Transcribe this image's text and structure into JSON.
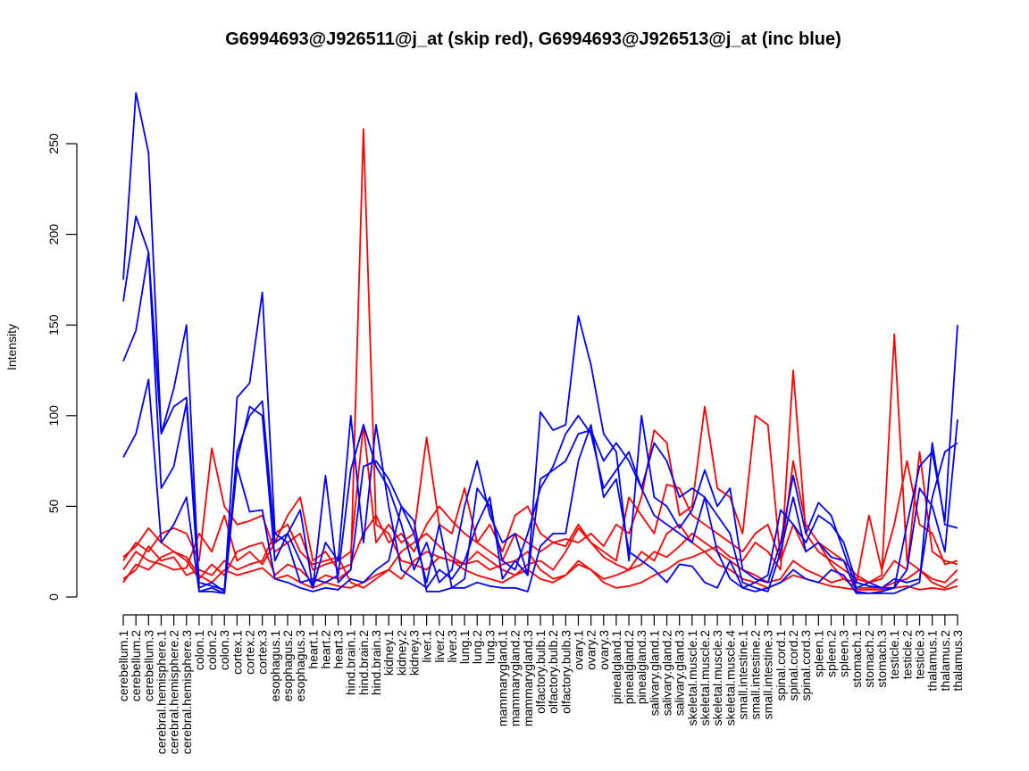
{
  "chart_data": {
    "type": "line",
    "title": "G6994693@J926511@j_at (skip red), G6994693@J926513@j_at (inc blue)",
    "xlabel": "",
    "ylabel": "Intensity",
    "ylim": [
      0,
      280
    ],
    "yticks": [
      0,
      50,
      100,
      150,
      200,
      250
    ],
    "grid": false,
    "categories": [
      "cerebellum.1",
      "cerebellum.2",
      "cerebellum.3",
      "cerebral.hemisphere.1",
      "cerebral.hemisphere.2",
      "cerebral.hemisphere.3",
      "colon.1",
      "colon.2",
      "colon.3",
      "cortex.1",
      "cortex.2",
      "cortex.3",
      "esophagus.1",
      "esophagus.2",
      "esophagus.3",
      "heart.1",
      "heart.2",
      "heart.3",
      "hind.brain.1",
      "hind.brain.2",
      "hind.brain.3",
      "kidney.1",
      "kidney.2",
      "kidney.3",
      "liver.1",
      "liver.2",
      "liver.3",
      "lung.1",
      "lung.2",
      "lung.3",
      "mammarygland.1",
      "mammarygland.2",
      "mammarygland.3",
      "olfactory.bulb.1",
      "olfactory.bulb.2",
      "olfactory.bulb.3",
      "ovary.1",
      "ovary.2",
      "ovary.3",
      "pinealgland.1",
      "pinealgland.2",
      "pinealgland.3",
      "salivary.gland.1",
      "salivary.gland.2",
      "salivary.gland.3",
      "skeletal.muscle.1",
      "skeletal.muscle.2",
      "skeletal.muscle.3",
      "skeletal.muscle.4",
      "small.intestine.1",
      "small.intestine.2",
      "small.intestine.3",
      "spinal.cord.1",
      "spinal.cord.2",
      "spinal.cord.3",
      "spleen.1",
      "spleen.2",
      "spleen.3",
      "stomach.1",
      "stomach.2",
      "stomach.3",
      "testicle.1",
      "testicle.2",
      "testicle.3",
      "thalamus.1",
      "thalamus.2",
      "thalamus.3"
    ],
    "series": [
      {
        "group": "skip",
        "color": "#ff0000",
        "values": [
          8,
          18,
          15,
          22,
          25,
          20,
          10,
          18,
          12,
          25,
          28,
          30,
          12,
          18,
          15,
          8,
          12,
          10,
          15,
          258,
          40,
          35,
          20,
          18,
          15,
          22,
          20,
          18,
          25,
          20,
          15,
          12,
          18,
          20,
          15,
          25,
          38,
          30,
          22,
          18,
          15,
          25,
          20,
          35,
          40,
          30,
          25,
          28,
          22,
          20,
          30,
          25,
          15,
          125,
          35,
          25,
          20,
          15,
          10,
          8,
          12,
          145,
          20,
          15,
          10,
          8,
          15
        ]
      },
      {
        "group": "skip",
        "color": "#ff0000",
        "values": [
          20,
          30,
          25,
          35,
          38,
          35,
          20,
          82,
          50,
          40,
          42,
          45,
          25,
          30,
          35,
          15,
          18,
          20,
          25,
          95,
          30,
          40,
          30,
          35,
          88,
          40,
          35,
          60,
          30,
          40,
          25,
          45,
          50,
          35,
          30,
          32,
          30,
          35,
          28,
          40,
          35,
          55,
          92,
          85,
          45,
          50,
          105,
          60,
          55,
          35,
          100,
          95,
          20,
          40,
          25,
          30,
          18,
          10,
          8,
          45,
          15,
          40,
          75,
          40,
          35,
          18,
          20
        ]
      },
      {
        "group": "skip",
        "color": "#ff0000",
        "values": [
          15,
          25,
          20,
          18,
          15,
          16,
          35,
          25,
          45,
          20,
          25,
          18,
          30,
          45,
          55,
          20,
          25,
          15,
          18,
          35,
          45,
          30,
          35,
          25,
          40,
          50,
          42,
          35,
          30,
          25,
          20,
          35,
          30,
          25,
          30,
          28,
          40,
          30,
          25,
          20,
          55,
          45,
          35,
          62,
          60,
          45,
          40,
          35,
          30,
          25,
          35,
          40,
          20,
          75,
          40,
          30,
          25,
          20,
          12,
          8,
          10,
          20,
          15,
          80,
          25,
          20,
          18
        ]
      },
      {
        "group": "skip",
        "color": "#ff0000",
        "values": [
          10,
          15,
          28,
          20,
          22,
          12,
          15,
          12,
          20,
          15,
          18,
          20,
          35,
          40,
          25,
          18,
          20,
          22,
          8,
          5,
          10,
          15,
          25,
          30,
          35,
          28,
          22,
          18,
          20,
          15,
          18,
          20,
          25,
          15,
          10,
          12,
          18,
          15,
          10,
          12,
          15,
          18,
          25,
          22,
          28,
          35,
          30,
          25,
          20,
          15,
          12,
          8,
          10,
          20,
          15,
          12,
          8,
          10,
          5,
          5,
          5,
          8,
          10,
          15,
          8,
          5,
          10
        ]
      },
      {
        "group": "skip",
        "color": "#ff0000",
        "values": [
          22,
          28,
          38,
          30,
          25,
          22,
          12,
          8,
          15,
          12,
          14,
          16,
          10,
          12,
          8,
          5,
          8,
          6,
          5,
          8,
          12,
          15,
          10,
          20,
          25,
          22,
          20,
          15,
          12,
          10,
          8,
          12,
          15,
          10,
          8,
          12,
          20,
          15,
          8,
          5,
          6,
          8,
          12,
          15,
          20,
          22,
          25,
          18,
          15,
          10,
          8,
          5,
          8,
          12,
          10,
          8,
          6,
          5,
          4,
          4,
          4,
          5,
          6,
          4,
          5,
          4,
          6
        ]
      },
      {
        "group": "inc",
        "color": "#0000ff",
        "values": [
          175,
          278,
          245,
          90,
          115,
          150,
          5,
          8,
          3,
          110,
          118,
          168,
          35,
          30,
          8,
          10,
          8,
          12,
          70,
          95,
          72,
          60,
          40,
          15,
          30,
          8,
          15,
          50,
          75,
          45,
          30,
          35,
          12,
          102,
          92,
          95,
          155,
          128,
          90,
          80,
          20,
          100,
          55,
          50,
          38,
          48,
          70,
          50,
          60,
          15,
          10,
          8,
          30,
          67,
          35,
          52,
          45,
          25,
          5,
          8,
          5,
          5,
          40,
          72,
          80,
          42,
          150
        ]
      },
      {
        "group": "inc",
        "color": "#0000ff",
        "values": [
          163,
          210,
          190,
          60,
          72,
          107,
          3,
          5,
          2,
          80,
          100,
          108,
          30,
          35,
          20,
          5,
          30,
          20,
          100,
          30,
          95,
          50,
          15,
          10,
          5,
          15,
          10,
          20,
          40,
          55,
          10,
          20,
          12,
          65,
          70,
          75,
          90,
          92,
          75,
          85,
          75,
          60,
          85,
          75,
          55,
          60,
          55,
          25,
          10,
          5,
          8,
          12,
          48,
          40,
          30,
          45,
          40,
          30,
          8,
          6,
          5,
          10,
          8,
          10,
          55,
          80,
          85
        ]
      },
      {
        "group": "inc",
        "color": "#0000ff",
        "values": [
          130,
          147,
          190,
          90,
          105,
          110,
          8,
          6,
          4,
          75,
          105,
          100,
          20,
          35,
          48,
          5,
          67,
          8,
          15,
          72,
          75,
          65,
          50,
          35,
          8,
          40,
          5,
          10,
          60,
          50,
          20,
          15,
          35,
          60,
          72,
          90,
          100,
          90,
          60,
          70,
          80,
          60,
          45,
          40,
          35,
          30,
          55,
          45,
          35,
          8,
          5,
          3,
          25,
          55,
          25,
          30,
          22,
          20,
          3,
          2,
          3,
          5,
          15,
          60,
          50,
          25,
          98
        ]
      },
      {
        "group": "inc",
        "color": "#0000ff",
        "values": [
          77,
          90,
          120,
          30,
          40,
          55,
          3,
          3,
          2,
          72,
          47,
          48,
          10,
          8,
          5,
          3,
          5,
          4,
          10,
          8,
          15,
          20,
          50,
          42,
          3,
          3,
          5,
          5,
          8,
          6,
          5,
          5,
          3,
          28,
          35,
          35,
          75,
          95,
          55,
          65,
          25,
          20,
          15,
          8,
          18,
          17,
          8,
          5,
          20,
          5,
          3,
          5,
          8,
          15,
          10,
          8,
          15,
          12,
          2,
          2,
          2,
          2,
          5,
          8,
          85,
          40,
          38
        ]
      }
    ]
  }
}
